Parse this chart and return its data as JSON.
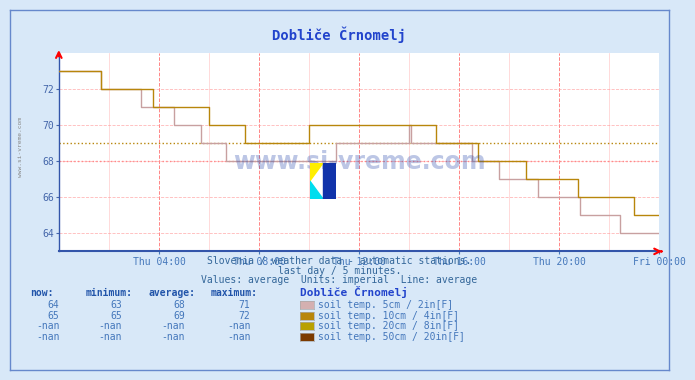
{
  "title": "Dobliče Črnomelj",
  "bg_color": "#d8e8f8",
  "plot_bg_color": "#ffffff",
  "subtitle1": "Slovenia / weather data - automatic stations.",
  "subtitle2": "last day / 5 minutes.",
  "subtitle3": "Values: average  Units: imperial  Line: average",
  "ylim": [
    63.0,
    74.0
  ],
  "yticks": [
    64,
    66,
    68,
    70,
    72
  ],
  "xtick_labels": [
    "Thu 04:00",
    "Thu 08:00",
    "Thu 12:00",
    "Thu 16:00",
    "Thu 20:00",
    "Fri 00:00"
  ],
  "xtick_major_positions": [
    48,
    96,
    144,
    192,
    240,
    288
  ],
  "series_colors": [
    "#c8a0a0",
    "#b8860b"
  ],
  "legend_colors": [
    "#d4b0b0",
    "#b8860b",
    "#b8a000",
    "#7b3a00"
  ],
  "legend_labels": [
    "soil temp. 5cm / 2in[F]",
    "soil temp. 10cm / 4in[F]",
    "soil temp. 20cm / 8in[F]",
    "soil temp. 50cm / 20in[F]"
  ],
  "table_headers": [
    "now:",
    "minimum:",
    "average:",
    "maximum:",
    "Dobliče Črnomelj"
  ],
  "table_rows": [
    [
      "64",
      "63",
      "68",
      "71"
    ],
    [
      "65",
      "65",
      "69",
      "72"
    ],
    [
      "-nan",
      "-nan",
      "-nan",
      "-nan"
    ],
    [
      "-nan",
      "-nan",
      "-nan",
      "-nan"
    ]
  ],
  "avg_line_5cm": 68.0,
  "avg_line_10cm": 69.0,
  "dotted_color_5cm": "#ff8888",
  "dotted_color_10cm": "#b8860b"
}
